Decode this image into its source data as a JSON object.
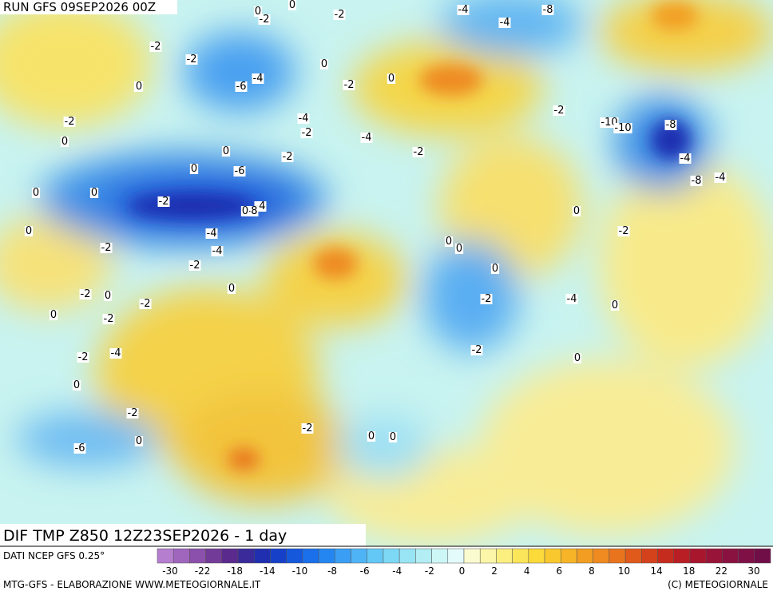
{
  "header": {
    "run": "RUN GFS 09SEP2026 00Z"
  },
  "map": {
    "field_label": "DIF TMP Z850 12Z23SEP2026 - 1 day",
    "contour_labels": [
      "0",
      "-2",
      "0",
      "-2",
      "-4",
      "-8",
      "-4",
      "-6",
      "-4",
      "0",
      "-2",
      "0",
      "-2",
      "-2",
      "0",
      "-4",
      "-2",
      "-2",
      "-6",
      "-4",
      "-8",
      "-2",
      "-10",
      "-10",
      "-8",
      "-4",
      "-8",
      "-4",
      "-2",
      "0",
      "-4",
      "-4",
      "-2",
      "0",
      "-2",
      "-2",
      "0",
      "-2",
      "0",
      "-2",
      "-2",
      "-4",
      "0",
      "-2",
      "0",
      "-6",
      "-2",
      "0",
      "0",
      "0",
      "0",
      "0",
      "-2",
      "-2",
      "-4",
      "0",
      "0",
      "0",
      "-2",
      "-2",
      "-4",
      "-2",
      "0",
      "0",
      "0",
      "0",
      "0",
      "0",
      "0"
    ]
  },
  "colorbar": {
    "source": "DATI NCEP GFS 0.25°",
    "ticks": [
      "-30",
      "-22",
      "-18",
      "-14",
      "-10",
      "-8",
      "-6",
      "-4",
      "-2",
      "0",
      "2",
      "4",
      "6",
      "8",
      "10",
      "14",
      "18",
      "22",
      "30"
    ],
    "colors": [
      "#b57ecf",
      "#a066bd",
      "#8b50ab",
      "#733b98",
      "#5a2a8c",
      "#3a2a9a",
      "#1f2fb0",
      "#1740c8",
      "#1558dc",
      "#1a70ea",
      "#2486f0",
      "#3a9ef4",
      "#4fb4f6",
      "#64c8f6",
      "#7cd8f4",
      "#98e4f4",
      "#b2eef4",
      "#cdf6f6",
      "#e4fbfb",
      "#fbfbd0",
      "#fbf6a8",
      "#fbef80",
      "#fbe65a",
      "#fbda3a",
      "#f9c82e",
      "#f6b426",
      "#f29e22",
      "#ee8a20",
      "#e8741e",
      "#e05a1c",
      "#d4421c",
      "#c62c1e",
      "#b81e24",
      "#a8162e",
      "#981438",
      "#8a1240",
      "#7e1046",
      "#700e48"
    ]
  },
  "footer": {
    "left": "MTG-GFS - ELABORAZIONE WWW.METEOGIORNALE.IT",
    "right": "(C) METEOGIORNALE"
  }
}
